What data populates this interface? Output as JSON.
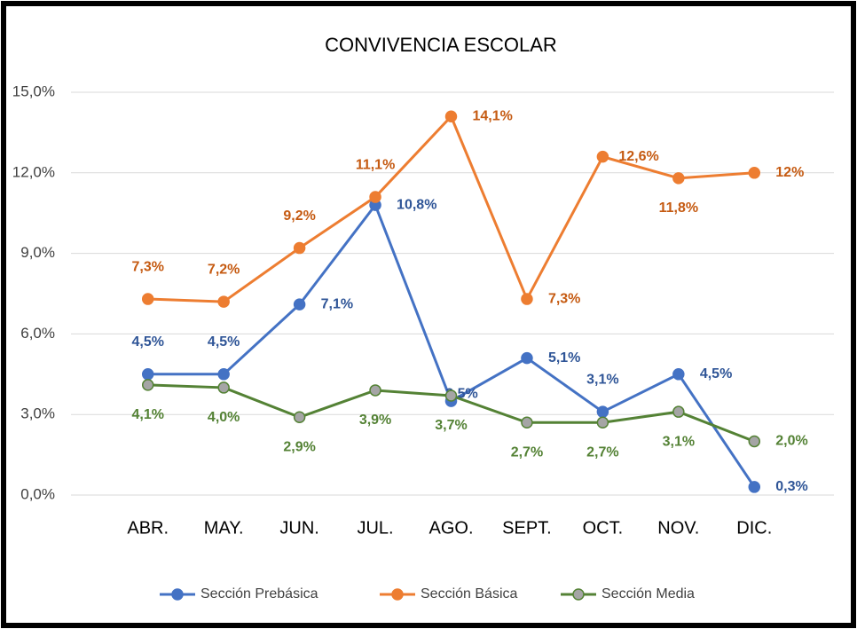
{
  "chart_data": {
    "type": "line",
    "title": "CONVIVENCIA ESCOLAR",
    "categories": [
      "ABR.",
      "MAY.",
      "JUN.",
      "JUL.",
      "AGO.",
      "SEPT.",
      "OCT.",
      "NOV.",
      "DIC."
    ],
    "series": [
      {
        "name": "Sección Prebásica",
        "color": "#4472c4",
        "values": [
          4.5,
          4.5,
          7.1,
          10.8,
          3.5,
          5.1,
          3.1,
          4.5,
          0.3
        ],
        "value_labels": [
          "4,5%",
          "4,5%",
          "7,1%",
          "10,8%",
          "3,5%",
          "5,1%",
          "3,1%",
          "4,5%",
          "0,3%"
        ]
      },
      {
        "name": "Sección Básica",
        "color": "#ed7d31",
        "values": [
          7.3,
          7.2,
          9.2,
          11.1,
          14.1,
          7.3,
          12.6,
          11.8,
          12
        ],
        "value_labels": [
          "7,3%",
          "7,2%",
          "9,2%",
          "11,1%",
          "14,1%",
          "7,3%",
          "12,6%",
          "11,8%",
          "12%"
        ]
      },
      {
        "name": "Sección Media",
        "color": "#548235",
        "marker_color": "#a5a5a5",
        "values": [
          4.1,
          4.0,
          2.9,
          3.9,
          3.7,
          2.7,
          2.7,
          3.1,
          2.0
        ],
        "value_labels": [
          "4,1%",
          "4,0%",
          "2,9%",
          "3,9%",
          "3,7%",
          "2,7%",
          "2,7%",
          "3,1%",
          "2,0%"
        ]
      }
    ],
    "ylim": [
      0,
      15
    ],
    "yticks": [
      {
        "value": 0,
        "label": "0,0%"
      },
      {
        "value": 3,
        "label": "3,0%"
      },
      {
        "value": 6,
        "label": "6,0%"
      },
      {
        "value": 9,
        "label": "9,0%"
      },
      {
        "value": 12,
        "label": "12,0%"
      },
      {
        "value": 15,
        "label": "15,0%"
      }
    ],
    "grid": true,
    "legend": "bottom"
  }
}
